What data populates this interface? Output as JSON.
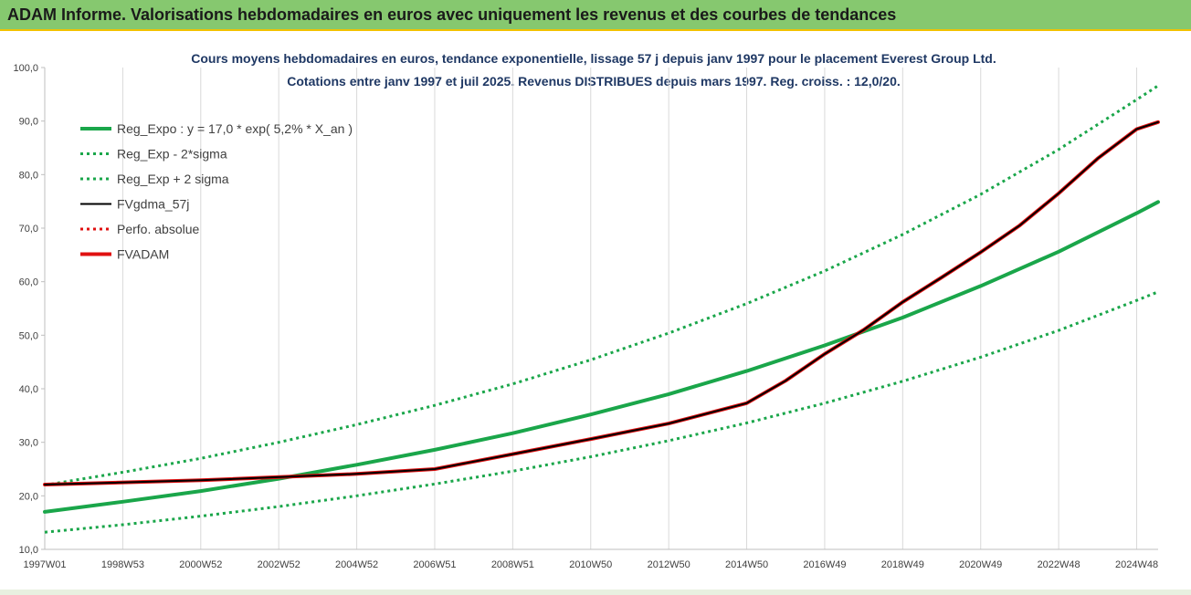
{
  "window": {
    "title": "ADAM Informe. Valorisations hebdomadaires en euros avec uniquement les revenus et des courbes de tendances"
  },
  "colors": {
    "header_bg": "#86c86f",
    "header_border": "#f2c200",
    "reg_green": "#1aa64a",
    "dotted_green": "#1aa64a",
    "fvgdma_black": "#000000",
    "perfo_red": "#e01010",
    "fvadam_red": "#e01010",
    "title_text": "#1f3864",
    "grid": "#d9d9d9"
  },
  "chart_data": {
    "type": "line",
    "title_line1": "Cours moyens hebdomadaires en euros, tendance exponentielle, lissage 57 j depuis janv 1997 pour le placement Everest Group Ltd.",
    "title_line2": "Cotations entre janv 1997 et juil 2025. Revenus DISTRIBUES depuis mars 1997. Reg. croiss. : 12,0/20.",
    "xlabel": "",
    "ylabel": "",
    "ylim": [
      10,
      100
    ],
    "xlim": [
      1997.0,
      2025.55
    ],
    "grid": "vertical",
    "legend_position": "top-left",
    "y_ticks": [
      "10,0",
      "20,0",
      "30,0",
      "40,0",
      "50,0",
      "60,0",
      "70,0",
      "80,0",
      "90,0",
      "100,0"
    ],
    "x_tick_labels": [
      "1997W01",
      "1998W53",
      "2000W52",
      "2002W52",
      "2004W52",
      "2006W51",
      "2008W51",
      "2010W50",
      "2012W50",
      "2014W50",
      "2016W49",
      "2018W49",
      "2020W49",
      "2022W48",
      "2024W48"
    ],
    "x_tick_years": [
      1997.0,
      1999.0,
      2001.0,
      2003.0,
      2005.0,
      2007.0,
      2009.0,
      2011.0,
      2013.0,
      2015.0,
      2017.0,
      2019.0,
      2021.0,
      2023.0,
      2025.0
    ],
    "series": [
      {
        "name": "Reg_Expo : y = 17,0 * exp( 5,2% *  X_an )",
        "style": "solid-thick",
        "color": "#1aa64a",
        "x": [
          1997.0,
          1999.0,
          2001.0,
          2003.0,
          2005.0,
          2007.0,
          2009.0,
          2011.0,
          2013.0,
          2015.0,
          2017.0,
          2019.0,
          2021.0,
          2023.0,
          2025.0,
          2025.55
        ],
        "y": [
          17.0,
          18.9,
          20.9,
          23.2,
          25.8,
          28.6,
          31.7,
          35.2,
          39.0,
          43.3,
          48.1,
          53.3,
          59.2,
          65.6,
          72.8,
          74.9
        ]
      },
      {
        "name": "Reg_Exp - 2*sigma",
        "style": "dotted",
        "color": "#1aa64a",
        "x": [
          1997.0,
          1999.0,
          2001.0,
          2003.0,
          2005.0,
          2007.0,
          2009.0,
          2011.0,
          2013.0,
          2015.0,
          2017.0,
          2019.0,
          2021.0,
          2023.0,
          2025.0,
          2025.55
        ],
        "y": [
          13.2,
          14.6,
          16.2,
          18.0,
          20.0,
          22.2,
          24.6,
          27.3,
          30.3,
          33.6,
          37.3,
          41.4,
          45.9,
          50.9,
          56.5,
          58.1
        ]
      },
      {
        "name": "Reg_Exp + 2 sigma",
        "style": "dotted",
        "color": "#1aa64a",
        "x": [
          1997.0,
          1999.0,
          2001.0,
          2003.0,
          2005.0,
          2007.0,
          2009.0,
          2011.0,
          2013.0,
          2015.0,
          2017.0,
          2019.0,
          2021.0,
          2023.0,
          2025.0,
          2025.55
        ],
        "y": [
          22.0,
          24.4,
          27.0,
          30.0,
          33.3,
          36.9,
          40.9,
          45.4,
          50.4,
          55.9,
          62.0,
          68.8,
          76.3,
          84.7,
          94.0,
          96.6
        ]
      },
      {
        "name": "FVgdma_57j",
        "style": "solid-thin",
        "color": "#000000",
        "x": [
          1997.0,
          2001.0,
          2005.0,
          2007.0,
          2009.0,
          2011.0,
          2013.0,
          2015.0,
          2016.0,
          2017.0,
          2018.0,
          2019.0,
          2020.0,
          2021.0,
          2022.0,
          2023.0,
          2024.0,
          2025.0,
          2025.55
        ],
        "y": [
          22.1,
          22.9,
          24.1,
          25.0,
          27.8,
          30.6,
          33.5,
          37.3,
          41.5,
          46.5,
          51.0,
          56.2,
          60.8,
          65.5,
          70.5,
          76.5,
          83.0,
          88.5,
          89.8
        ]
      },
      {
        "name": "Perfo. absolue",
        "style": "dotted",
        "color": "#e01010",
        "x": [
          1997.0,
          2001.0,
          2005.0,
          2007.0,
          2009.0,
          2011.0,
          2013.0,
          2015.0,
          2016.0,
          2017.0,
          2018.0,
          2019.0,
          2020.0,
          2021.0,
          2022.0,
          2023.0,
          2024.0,
          2025.0,
          2025.55
        ],
        "y": [
          22.1,
          22.9,
          24.1,
          25.0,
          27.8,
          30.6,
          33.5,
          37.3,
          41.5,
          46.5,
          51.0,
          56.2,
          60.8,
          65.5,
          70.5,
          76.5,
          83.0,
          88.5,
          89.8
        ]
      },
      {
        "name": "FVADAM",
        "style": "solid-thick",
        "color": "#e01010",
        "x": [
          1997.0,
          2001.0,
          2005.0,
          2007.0,
          2009.0,
          2011.0,
          2013.0,
          2015.0,
          2016.0,
          2017.0,
          2018.0,
          2019.0,
          2020.0,
          2021.0,
          2022.0,
          2023.0,
          2024.0,
          2025.0,
          2025.55
        ],
        "y": [
          22.1,
          22.9,
          24.1,
          25.0,
          27.8,
          30.6,
          33.5,
          37.3,
          41.5,
          46.5,
          51.0,
          56.2,
          60.8,
          65.5,
          70.5,
          76.5,
          83.0,
          88.5,
          89.8
        ]
      }
    ]
  }
}
